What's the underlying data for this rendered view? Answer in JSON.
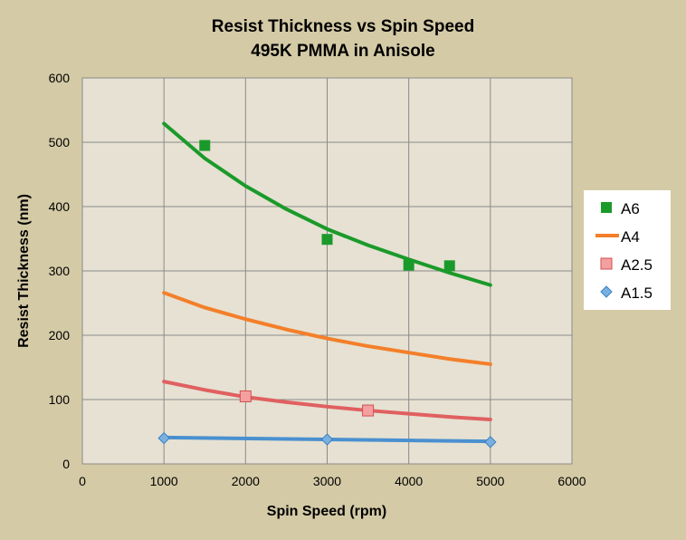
{
  "chart_data": {
    "type": "scatter",
    "title": "Resist Thickness vs Spin Speed",
    "subtitle": "495K PMMA in Anisole",
    "xlabel": "Spin Speed (rpm)",
    "ylabel": "Resist Thickness (nm)",
    "xlim": [
      0,
      6000
    ],
    "ylim": [
      0,
      600
    ],
    "xticks": [
      0,
      1000,
      2000,
      3000,
      4000,
      5000,
      6000
    ],
    "yticks": [
      0,
      100,
      200,
      300,
      400,
      500,
      600
    ],
    "grid": true,
    "legend_position": "right",
    "series": [
      {
        "name": "A6",
        "color": "#1a9a2a",
        "marker": "square",
        "points": [
          [
            1500,
            495
          ],
          [
            3000,
            349
          ],
          [
            4000,
            309
          ],
          [
            4500,
            308
          ]
        ],
        "curve": [
          [
            1000,
            529
          ],
          [
            1500,
            475
          ],
          [
            2000,
            432
          ],
          [
            2500,
            396
          ],
          [
            3000,
            365
          ],
          [
            3500,
            340
          ],
          [
            4000,
            318
          ],
          [
            4500,
            297
          ],
          [
            5000,
            278
          ]
        ]
      },
      {
        "name": "A4",
        "color": "#f47f2a",
        "marker": "line",
        "points": [],
        "curve": [
          [
            1000,
            266
          ],
          [
            1500,
            243
          ],
          [
            2000,
            225
          ],
          [
            2500,
            209
          ],
          [
            3000,
            195
          ],
          [
            3500,
            183
          ],
          [
            4000,
            173
          ],
          [
            4500,
            163
          ],
          [
            5000,
            155
          ]
        ]
      },
      {
        "name": "A2.5",
        "color": "#e06060",
        "marker": "square-light",
        "points": [
          [
            2000,
            105
          ],
          [
            3500,
            83
          ]
        ],
        "curve": [
          [
            1000,
            128
          ],
          [
            1500,
            115
          ],
          [
            2000,
            104
          ],
          [
            2500,
            96
          ],
          [
            3000,
            89
          ],
          [
            3500,
            83
          ],
          [
            4000,
            78
          ],
          [
            4500,
            73
          ],
          [
            5000,
            69
          ]
        ]
      },
      {
        "name": "A1.5",
        "color": "#4a90d0",
        "marker": "diamond",
        "points": [
          [
            1000,
            40
          ],
          [
            3000,
            38
          ],
          [
            5000,
            34
          ]
        ],
        "curve": [
          [
            1000,
            41
          ],
          [
            3000,
            38
          ],
          [
            5000,
            35
          ]
        ]
      }
    ]
  }
}
